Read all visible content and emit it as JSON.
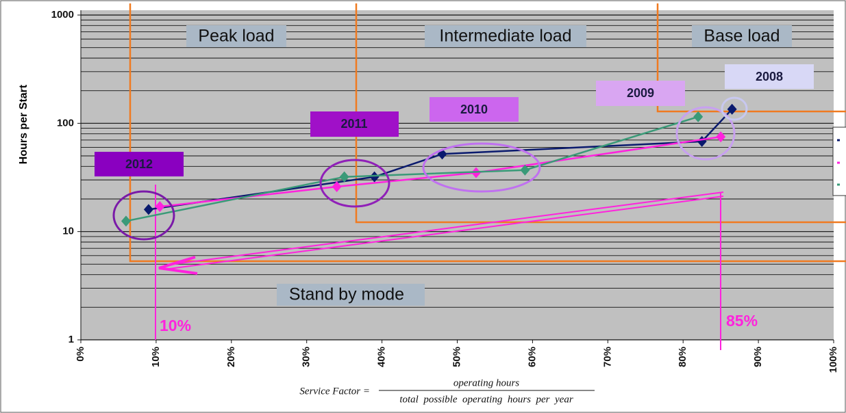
{
  "chart_data": {
    "type": "line",
    "y_label": "Hours per Start",
    "yscale": "log",
    "ylim": [
      1,
      1000
    ],
    "yticks": [
      1,
      10,
      100,
      1000
    ],
    "xlim": [
      0,
      100
    ],
    "xticks": [
      {
        "value": 0,
        "label": "0%"
      },
      {
        "value": 10,
        "label": "10%"
      },
      {
        "value": 20,
        "label": "20%"
      },
      {
        "value": 30,
        "label": "30%"
      },
      {
        "value": 40,
        "label": "40%"
      },
      {
        "value": 50,
        "label": "50%"
      },
      {
        "value": 60,
        "label": "60%"
      },
      {
        "value": 70,
        "label": "70%"
      },
      {
        "value": 80,
        "label": "80%"
      },
      {
        "value": 90,
        "label": "90%"
      },
      {
        "value": 100,
        "label": "100%"
      }
    ],
    "grid": true,
    "minor_grid": true,
    "series": [
      {
        "color": "#0a1a6e",
        "x": [
          9,
          39,
          48,
          82.5,
          86.5
        ],
        "values": [
          16,
          32,
          52,
          68,
          135
        ]
      },
      {
        "color": "#ff22dd",
        "x": [
          10.5,
          34,
          52.5,
          85
        ],
        "values": [
          17,
          26,
          35,
          75
        ]
      },
      {
        "color": "#3a9a78",
        "x": [
          6,
          35,
          59,
          82
        ],
        "values": [
          12.5,
          32,
          37,
          115
        ]
      }
    ],
    "annotations": {
      "regions": [
        "Peak load",
        "Intermediate load",
        "Base load",
        "Stand by mode"
      ],
      "years": [
        "2012",
        "2011",
        "2010",
        "2009",
        "2008"
      ],
      "thresholds": [
        "10%",
        "85%"
      ]
    },
    "formula": {
      "lhs": "Service Factor =",
      "numerator": "operating hours",
      "denominator": "total  possible  operating  hours  per  year"
    }
  }
}
